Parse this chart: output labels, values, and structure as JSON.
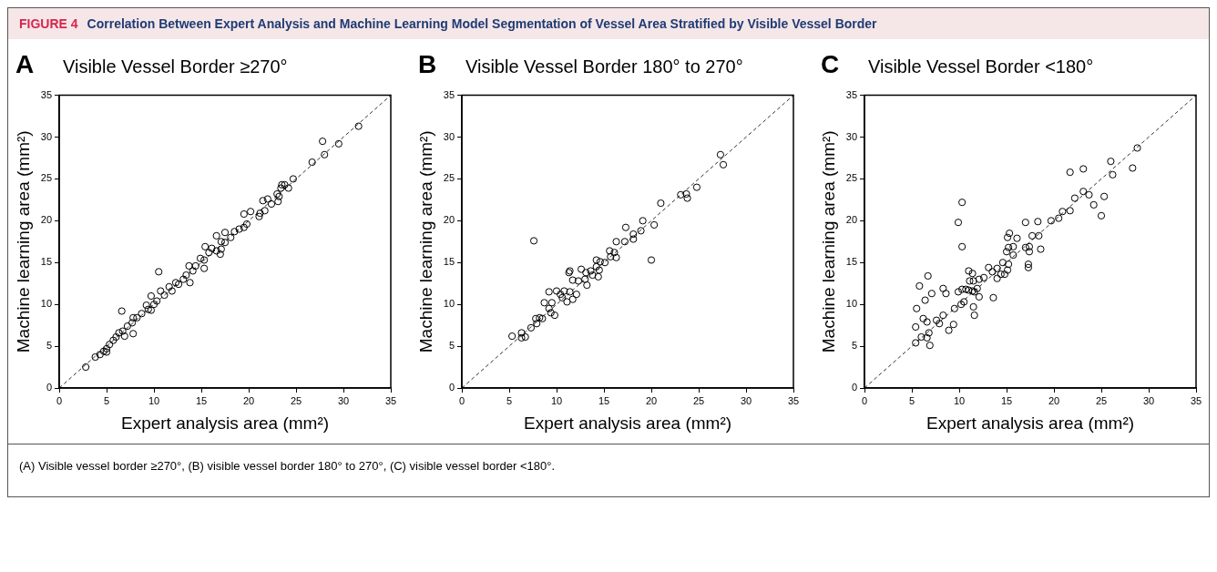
{
  "chart_data": [
    {
      "type": "scatter",
      "title": "Visible Vessel Border ≥270°",
      "xlabel": "Expert analysis area (mm²)",
      "ylabel": "Machine learning area (mm²)",
      "xlim": [
        0,
        35
      ],
      "ylim": [
        0,
        35
      ],
      "xticks": [
        0,
        5,
        10,
        15,
        20,
        25,
        30,
        35
      ],
      "yticks": [
        0,
        5,
        10,
        15,
        20,
        25,
        30,
        35
      ],
      "grid": false,
      "legend": false,
      "annotations": [
        "A",
        "FIGURE 4",
        "Correlation Between Expert Analysis and Machine Learning Model Segmentation of Vessel Area Stratified by Visible Vessel Border",
        "(A) Visible vessel border ≥270°, (B) visible vessel border 180° to 270°, (C) visible vessel border <180°."
      ],
      "series": [
        {
          "type": "scatter",
          "marker": "circle",
          "color": "#000000",
          "x": [
            31.6,
            27.8,
            29.5,
            28.0,
            26.7,
            24.7,
            23.5,
            23.8,
            24.2,
            23.4,
            23.0,
            23.2,
            21.5,
            22.0,
            22.4,
            23.1,
            21.2,
            21.1,
            21.7,
            19.5,
            20.2,
            19.8,
            19.5,
            19.0,
            18.5,
            17.5,
            16.6,
            18.1,
            17.1,
            17.5,
            15.4,
            16.1,
            16.6,
            17.1,
            15.8,
            17.0,
            14.9,
            15.3,
            15.3,
            14.4,
            13.7,
            14.1,
            13.4,
            13.8,
            13.1,
            12.6,
            10.5,
            12.3,
            11.6,
            11.9,
            11.1,
            10.7,
            9.7,
            10.3,
            10.0,
            9.2,
            9.7,
            9.4,
            8.7,
            8.2,
            7.8,
            7.7,
            6.6,
            7.2,
            6.7,
            6.9,
            7.8,
            6.3,
            6.0,
            5.7,
            5.3,
            5.0,
            4.7,
            4.3,
            3.8,
            5.0,
            2.8
          ],
          "values": [
            31.3,
            29.5,
            29.2,
            27.9,
            27.0,
            25.0,
            24.3,
            24.3,
            23.9,
            23.9,
            23.2,
            22.9,
            22.4,
            22.6,
            22.0,
            22.3,
            20.9,
            20.5,
            21.2,
            20.8,
            21.1,
            19.6,
            19.2,
            19.0,
            18.7,
            18.6,
            18.2,
            18.0,
            17.5,
            17.4,
            16.9,
            16.7,
            16.4,
            16.6,
            16.2,
            16.0,
            15.5,
            15.3,
            14.3,
            14.6,
            14.6,
            14.0,
            13.5,
            12.6,
            13.0,
            12.4,
            13.9,
            12.6,
            12.1,
            11.6,
            11.1,
            11.6,
            11.0,
            10.4,
            10.0,
            9.9,
            9.3,
            9.4,
            8.9,
            8.4,
            8.4,
            7.8,
            9.2,
            7.4,
            6.8,
            6.2,
            6.5,
            6.6,
            6.1,
            5.7,
            5.2,
            4.7,
            4.4,
            4.0,
            3.7,
            4.3,
            2.5
          ]
        },
        {
          "type": "line",
          "marker": "none",
          "line_style": "dashed",
          "color": "#333333",
          "x": [
            0,
            35
          ],
          "values": [
            0,
            35
          ]
        }
      ]
    },
    {
      "type": "scatter",
      "title": "Visible Vessel Border 180° to 270°",
      "xlabel": "Expert analysis area (mm²)",
      "ylabel": "Machine learning area (mm²)",
      "xlim": [
        0,
        35
      ],
      "ylim": [
        0,
        35
      ],
      "xticks": [
        0,
        5,
        10,
        15,
        20,
        25,
        30,
        35
      ],
      "yticks": [
        0,
        5,
        10,
        15,
        20,
        25,
        30,
        35
      ],
      "grid": false,
      "legend": false,
      "annotations": [
        "B"
      ],
      "series": [
        {
          "type": "scatter",
          "marker": "circle",
          "color": "#000000",
          "x": [
            27.3,
            27.6,
            24.8,
            23.1,
            23.7,
            23.8,
            21.0,
            19.1,
            20.3,
            17.3,
            18.1,
            18.9,
            18.1,
            17.2,
            16.3,
            7.6,
            20.0,
            15.6,
            16.1,
            15.7,
            16.3,
            14.2,
            14.6,
            15.1,
            14.2,
            14.5,
            14.4,
            12.6,
            11.4,
            11.3,
            13.1,
            13.6,
            13.8,
            13.0,
            13.2,
            12.3,
            11.7,
            9.2,
            10.0,
            10.8,
            11.4,
            10.4,
            10.6,
            12.1,
            11.7,
            11.1,
            8.7,
            9.5,
            9.2,
            9.4,
            9.8,
            8.5,
            8.2,
            7.8,
            7.9,
            7.3,
            5.3,
            6.3,
            6.3,
            6.7
          ],
          "values": [
            27.9,
            26.7,
            24.0,
            23.1,
            23.2,
            22.7,
            22.1,
            20.0,
            19.5,
            19.2,
            18.4,
            18.8,
            17.8,
            17.5,
            17.5,
            17.6,
            15.3,
            16.4,
            16.2,
            15.7,
            15.6,
            15.3,
            15.1,
            15.0,
            14.5,
            14.1,
            13.3,
            14.2,
            14.0,
            13.8,
            13.8,
            14.0,
            13.5,
            13.0,
            12.3,
            12.8,
            12.9,
            11.5,
            11.6,
            11.6,
            11.5,
            11.2,
            10.8,
            11.2,
            10.6,
            10.3,
            10.2,
            10.2,
            9.5,
            9.0,
            8.7,
            8.3,
            8.4,
            8.3,
            7.7,
            7.2,
            6.2,
            6.6,
            6.0,
            6.1
          ]
        },
        {
          "type": "line",
          "marker": "none",
          "line_style": "dashed",
          "color": "#333333",
          "x": [
            0,
            35
          ],
          "values": [
            0,
            35
          ]
        }
      ]
    },
    {
      "type": "scatter",
      "title": "Visible Vessel Border <180°",
      "xlabel": "Expert analysis area (mm²)",
      "ylabel": "Machine learning area (mm²)",
      "xlim": [
        0,
        35
      ],
      "ylim": [
        0,
        35
      ],
      "xticks": [
        0,
        5,
        10,
        15,
        20,
        25,
        30,
        35
      ],
      "yticks": [
        0,
        5,
        10,
        15,
        20,
        25,
        30,
        35
      ],
      "grid": false,
      "legend": false,
      "annotations": [
        "C"
      ],
      "series": [
        {
          "type": "scatter",
          "marker": "circle",
          "color": "#000000",
          "x": [
            28.8,
            26.0,
            28.3,
            26.2,
            21.7,
            23.1,
            23.1,
            23.7,
            22.2,
            25.3,
            24.2,
            25.0,
            21.7,
            20.9,
            20.5,
            19.7,
            10.3,
            9.9,
            10.3,
            18.3,
            17.0,
            15.3,
            15.1,
            16.1,
            17.7,
            18.4,
            15.7,
            15.2,
            15.0,
            15.7,
            17.0,
            17.4,
            17.4,
            18.6,
            17.3,
            17.3,
            14.6,
            15.2,
            15.1,
            14.8,
            14.4,
            14.0,
            13.1,
            13.5,
            14.0,
            12.6,
            11.0,
            11.4,
            11.1,
            11.5,
            12.1,
            13.6,
            6.7,
            5.8,
            7.1,
            8.3,
            8.6,
            9.9,
            10.3,
            10.7,
            11.0,
            11.4,
            11.9,
            11.6,
            12.1,
            6.4,
            5.5,
            10.2,
            10.5,
            9.5,
            11.5,
            11.6,
            6.2,
            6.6,
            7.6,
            8.3,
            7.9,
            8.9,
            9.4,
            5.4,
            6.0,
            6.6,
            6.8,
            6.9,
            5.4
          ],
          "values": [
            28.7,
            27.1,
            26.3,
            25.5,
            25.8,
            26.2,
            23.5,
            23.1,
            22.7,
            22.9,
            21.9,
            20.6,
            21.2,
            21.1,
            20.3,
            20.0,
            22.2,
            19.8,
            16.9,
            19.9,
            19.8,
            18.5,
            18.0,
            17.9,
            18.2,
            18.2,
            16.9,
            16.8,
            16.3,
            15.9,
            16.8,
            16.9,
            16.3,
            16.6,
            14.8,
            14.4,
            15.0,
            14.8,
            14.1,
            13.6,
            13.6,
            14.3,
            14.4,
            13.9,
            13.1,
            13.2,
            14.0,
            13.7,
            12.8,
            12.8,
            13.0,
            10.8,
            13.4,
            12.2,
            11.3,
            11.9,
            11.3,
            11.5,
            11.8,
            11.8,
            11.7,
            11.6,
            11.9,
            11.5,
            10.9,
            10.5,
            9.5,
            10.0,
            10.3,
            9.5,
            9.7,
            8.7,
            8.3,
            7.9,
            8.1,
            8.7,
            7.7,
            6.9,
            7.6,
            7.3,
            6.1,
            6.0,
            6.6,
            5.1,
            5.4
          ]
        },
        {
          "type": "line",
          "marker": "none",
          "line_style": "dashed",
          "color": "#333333",
          "x": [
            0,
            35
          ],
          "values": [
            0,
            35
          ]
        }
      ]
    }
  ]
}
